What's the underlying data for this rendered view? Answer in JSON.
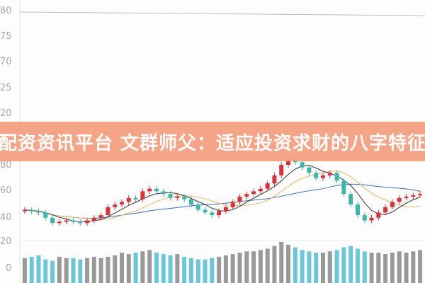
{
  "banner": {
    "title": "配资资讯平台 文群师父：适应投资求财的八字特征",
    "color": "#f49e7e"
  },
  "chart_data": {
    "type": "candlestick",
    "title": "配资资讯平台 文群师父：适应投资求财的八字特征",
    "upper_pane_ticks": [
      "80",
      "75",
      "70",
      "25",
      "20"
    ],
    "price_ticks": [
      80,
      60,
      40
    ],
    "volume_ticks": [
      20,
      0
    ],
    "price_ylim": [
      30,
      90
    ],
    "volume_ylim": [
      0,
      20
    ],
    "colors": {
      "up": "#d6333a",
      "down": "#3fb5a7",
      "ma5": "#333333",
      "ma10": "#e6b96a",
      "ma20": "#3a6fb0",
      "volume_up": "#999999",
      "volume_down": "#6cc6d8"
    },
    "open": [
      45,
      46,
      45,
      44,
      40,
      36,
      37,
      38,
      37,
      36,
      38,
      40,
      42,
      48,
      50,
      52,
      55,
      54,
      60,
      62,
      60,
      58,
      55,
      56,
      54,
      50,
      46,
      44,
      42,
      45,
      48,
      52,
      56,
      58,
      60,
      62,
      66,
      72,
      80,
      84,
      82,
      78,
      74,
      70,
      72,
      74,
      68,
      58,
      50,
      42,
      38,
      40,
      44,
      48,
      52,
      55,
      56,
      57
    ],
    "close": [
      46,
      45,
      44,
      40,
      36,
      37,
      38,
      37,
      36,
      38,
      40,
      42,
      48,
      50,
      52,
      55,
      54,
      60,
      62,
      60,
      58,
      55,
      56,
      54,
      50,
      46,
      44,
      42,
      45,
      48,
      52,
      56,
      58,
      60,
      62,
      66,
      72,
      80,
      84,
      82,
      78,
      74,
      70,
      72,
      74,
      68,
      58,
      50,
      42,
      38,
      40,
      44,
      48,
      52,
      55,
      56,
      57,
      58
    ],
    "high": [
      48,
      48,
      47,
      46,
      42,
      39,
      40,
      40,
      39,
      40,
      42,
      44,
      50,
      52,
      54,
      57,
      57,
      62,
      64,
      64,
      62,
      60,
      58,
      58,
      56,
      52,
      48,
      46,
      47,
      50,
      54,
      58,
      60,
      62,
      64,
      68,
      74,
      82,
      86,
      86,
      84,
      80,
      76,
      74,
      76,
      76,
      70,
      60,
      52,
      44,
      42,
      46,
      50,
      54,
      57,
      58,
      59,
      60
    ],
    "low": [
      43,
      43,
      42,
      38,
      34,
      34,
      35,
      35,
      34,
      34,
      36,
      38,
      40,
      46,
      48,
      50,
      52,
      52,
      58,
      58,
      56,
      53,
      53,
      52,
      48,
      44,
      42,
      40,
      40,
      43,
      46,
      50,
      54,
      56,
      58,
      60,
      64,
      70,
      78,
      80,
      76,
      72,
      68,
      68,
      70,
      66,
      56,
      48,
      40,
      36,
      36,
      38,
      42,
      46,
      50,
      53,
      54,
      55
    ],
    "volume": [
      8,
      9,
      10,
      7,
      6,
      9,
      8,
      8,
      7,
      8,
      9,
      8,
      9,
      10,
      12,
      11,
      12,
      13,
      14,
      12,
      11,
      10,
      11,
      9,
      8,
      7,
      7,
      8,
      9,
      10,
      11,
      12,
      13,
      13,
      14,
      15,
      17,
      20,
      18,
      16,
      14,
      13,
      12,
      12,
      13,
      14,
      16,
      17,
      15,
      13,
      12,
      12,
      11,
      12,
      13,
      12,
      13,
      14
    ]
  }
}
